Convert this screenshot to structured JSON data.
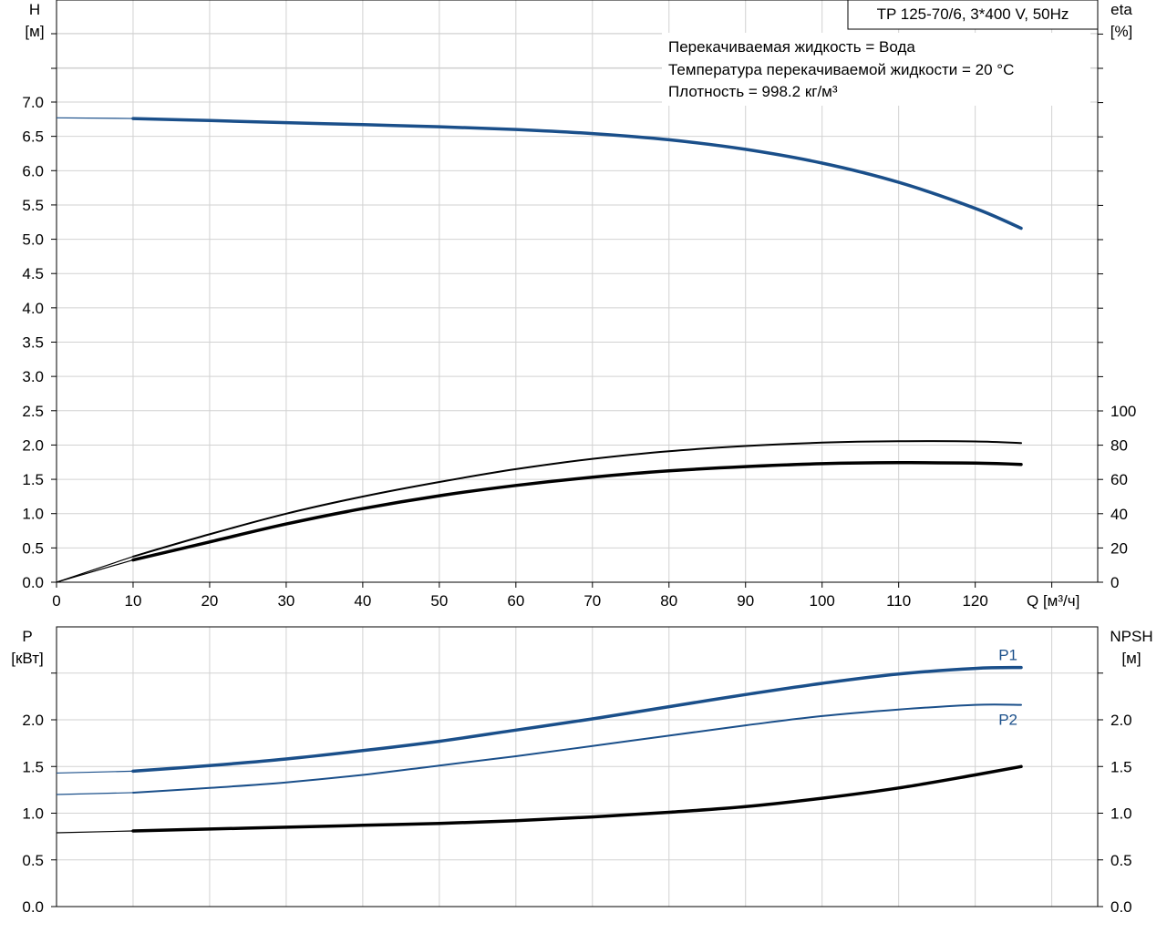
{
  "info": {
    "title": "TP 125-70/6, 3*400 V, 50Hz",
    "lines": [
      "Перекачиваемая жидкость = Вода",
      "Температура перекачиваемой жидкости = 20 °C",
      "Плотность = 998.2 кг/м³"
    ]
  },
  "colors": {
    "blue": "#1a4f8a",
    "black": "#000000",
    "grid": "#d2d2d2"
  },
  "chart_data": [
    {
      "type": "line",
      "id": "head-efficiency",
      "x_axis": {
        "label": "Q [м³/ч]",
        "range": [
          0,
          136
        ],
        "ticks": [
          0,
          10,
          20,
          30,
          40,
          50,
          60,
          70,
          80,
          90,
          100,
          110,
          120
        ]
      },
      "y_left": {
        "label": [
          "H",
          "[м]"
        ],
        "range": [
          0,
          7.5
        ],
        "ticks": [
          "0.0",
          "0.5",
          "1.0",
          "1.5",
          "2.0",
          "2.5",
          "3.0",
          "3.5",
          "4.0",
          "4.5",
          "5.0",
          "5.5",
          "6.0",
          "6.5",
          "7.0"
        ]
      },
      "y_right": {
        "label": [
          "eta",
          "[%]"
        ],
        "range": [
          0,
          100
        ],
        "ticks": [
          "0",
          "20",
          "40",
          "60",
          "80",
          "100"
        ]
      },
      "grid": true,
      "series": [
        {
          "axis": "left",
          "color": "blue",
          "width": 3.5,
          "x": [
            10,
            20,
            30,
            40,
            50,
            60,
            70,
            80,
            90,
            100,
            110,
            120,
            126
          ],
          "y": [
            6.76,
            6.73,
            6.7,
            6.67,
            6.64,
            6.6,
            6.54,
            6.45,
            6.31,
            6.11,
            5.83,
            5.45,
            5.16
          ],
          "lead_x": [
            0,
            10
          ],
          "lead_y": [
            6.77,
            6.76
          ]
        },
        {
          "axis": "right",
          "color": "black",
          "width": 2,
          "x": [
            10,
            20,
            30,
            40,
            50,
            60,
            70,
            80,
            90,
            100,
            110,
            120,
            126
          ],
          "y": [
            15,
            28,
            40,
            50,
            58.5,
            66,
            72,
            76.5,
            79.5,
            81.5,
            82.3,
            82.2,
            81.2
          ],
          "lead_x": [
            0,
            10
          ],
          "lead_y": [
            0,
            15
          ]
        },
        {
          "axis": "right",
          "color": "black",
          "width": 3.5,
          "x": [
            10,
            20,
            30,
            40,
            50,
            60,
            70,
            80,
            90,
            100,
            110,
            120,
            126
          ],
          "y": [
            13,
            23.5,
            34,
            43,
            50.5,
            56.5,
            61.3,
            65,
            67.5,
            69.2,
            69.8,
            69.5,
            68.8
          ],
          "lead_x": [
            0,
            10
          ],
          "lead_y": [
            0,
            13
          ]
        }
      ]
    },
    {
      "type": "line",
      "id": "power-npsh",
      "x_axis": {
        "range": [
          0,
          136
        ],
        "ticks": []
      },
      "y_left": {
        "label": [
          "P",
          "[кВт]"
        ],
        "range": [
          0,
          2.95
        ],
        "ticks": [
          "0.0",
          "0.5",
          "1.0",
          "1.5",
          "2.0"
        ]
      },
      "y_right": {
        "label": [
          "NPSH",
          "[м]"
        ],
        "range": [
          0,
          2.95
        ],
        "ticks": [
          "0.0",
          "0.5",
          "1.0",
          "1.5",
          "2.0"
        ]
      },
      "grid": true,
      "series": [
        {
          "name": "P1",
          "axis": "left",
          "color": "blue",
          "width": 3.5,
          "x": [
            10,
            20,
            30,
            40,
            50,
            60,
            70,
            80,
            90,
            100,
            110,
            120,
            126
          ],
          "y": [
            1.45,
            1.51,
            1.58,
            1.67,
            1.77,
            1.89,
            2.01,
            2.14,
            2.27,
            2.39,
            2.49,
            2.55,
            2.56
          ],
          "lead_x": [
            0,
            10
          ],
          "lead_y": [
            1.43,
            1.45
          ]
        },
        {
          "name": "P2",
          "axis": "left",
          "color": "blue",
          "width": 2,
          "x": [
            10,
            20,
            30,
            40,
            50,
            60,
            70,
            80,
            90,
            100,
            110,
            120,
            126
          ],
          "y": [
            1.22,
            1.27,
            1.33,
            1.41,
            1.51,
            1.61,
            1.72,
            1.83,
            1.94,
            2.04,
            2.11,
            2.16,
            2.16
          ],
          "lead_x": [
            0,
            10
          ],
          "lead_y": [
            1.2,
            1.22
          ]
        },
        {
          "axis": "right",
          "color": "black",
          "width": 3.5,
          "x": [
            10,
            20,
            30,
            40,
            50,
            60,
            70,
            80,
            90,
            100,
            110,
            120,
            126
          ],
          "y": [
            0.81,
            0.83,
            0.85,
            0.87,
            0.89,
            0.92,
            0.96,
            1.01,
            1.07,
            1.16,
            1.27,
            1.41,
            1.5
          ],
          "lead_x": [
            0,
            10
          ],
          "lead_y": [
            0.79,
            0.81
          ]
        }
      ]
    }
  ]
}
